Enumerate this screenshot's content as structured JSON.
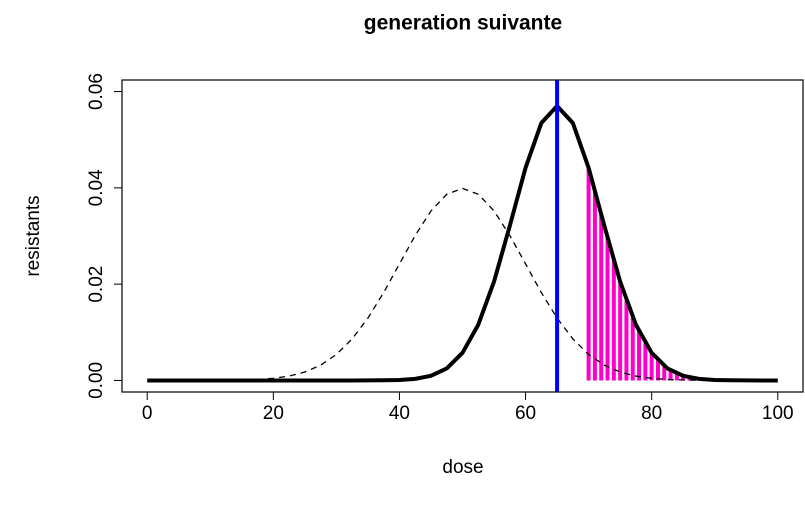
{
  "chart_data": {
    "type": "line",
    "title": "generation suivante",
    "xlabel": "dose",
    "ylabel": "resistants",
    "xlim": [
      -4,
      104
    ],
    "ylim": [
      -0.0024,
      0.0624
    ],
    "xticks": [
      0,
      20,
      40,
      60,
      80,
      100
    ],
    "yticks": [
      {
        "value": 0,
        "label": "0.00"
      },
      0.02,
      0.04,
      0.06
    ],
    "x": [
      0,
      2.5,
      5,
      7.5,
      10,
      12.5,
      15,
      17.5,
      20,
      22.5,
      25,
      27.5,
      30,
      32.5,
      35,
      37.5,
      40,
      42.5,
      45,
      47.5,
      50,
      52.5,
      55,
      57.5,
      60,
      62.5,
      65,
      67.5,
      70,
      72.5,
      75,
      77.5,
      80,
      82.5,
      85,
      87.5,
      90,
      92.5,
      95,
      97.5,
      100
    ],
    "series": [
      {
        "color": "#000000",
        "dash": true,
        "width": 1.3,
        "values": [
          0,
          0,
          0,
          0,
          1e-05,
          4e-05,
          9e-05,
          0.0002,
          0.00044,
          0.00091,
          0.00175,
          0.00317,
          0.0054,
          0.00863,
          0.01295,
          0.01826,
          0.0242,
          0.03011,
          0.03521,
          0.03867,
          0.03989,
          0.03867,
          0.03521,
          0.03011,
          0.0242,
          0.01826,
          0.01295,
          0.00863,
          0.0054,
          0.00317,
          0.00175,
          0.00091,
          0.00044,
          0.0002,
          9e-05,
          4e-05,
          1e-05,
          0,
          0,
          0,
          0
        ]
      },
      {
        "color": "#000000",
        "dash": false,
        "width": 4,
        "values": [
          0,
          0,
          0,
          0,
          0,
          0,
          0,
          0,
          0,
          0,
          0,
          0,
          0,
          0,
          1e-05,
          3e-05,
          0.0001,
          0.00033,
          0.00096,
          0.0025,
          0.00574,
          0.01157,
          0.02054,
          0.0321,
          0.04416,
          0.05347,
          0.05699,
          0.05347,
          0.04416,
          0.0321,
          0.02054,
          0.01157,
          0.00574,
          0.0025,
          0.00096,
          0.00033,
          0.0001,
          3e-05,
          1e-05,
          0,
          0
        ]
      }
    ],
    "bars": {
      "color": "#ff00cc",
      "x": [
        70,
        71,
        72,
        73,
        74,
        75,
        76,
        77,
        78,
        79,
        80,
        81,
        82,
        83,
        84,
        85,
        86,
        87,
        88,
        89,
        90,
        91,
        92,
        93,
        94,
        95,
        96,
        97,
        98,
        99,
        100
      ],
      "values": [
        0.04416,
        0.03947,
        0.03457,
        0.02966,
        0.02494,
        0.02054,
        0.01658,
        0.01311,
        0.01016,
        0.00771,
        0.00574,
        0.00418,
        0.00299,
        0.00209,
        0.00143,
        0.00096,
        0.00063,
        0.00041,
        0.00026,
        0.00016,
        0.0001,
        6e-05,
        3e-05,
        2e-05,
        1e-05,
        1e-05,
        0,
        0,
        0,
        0,
        0
      ]
    },
    "vline": {
      "x": 65,
      "color": "#0000ff"
    }
  }
}
